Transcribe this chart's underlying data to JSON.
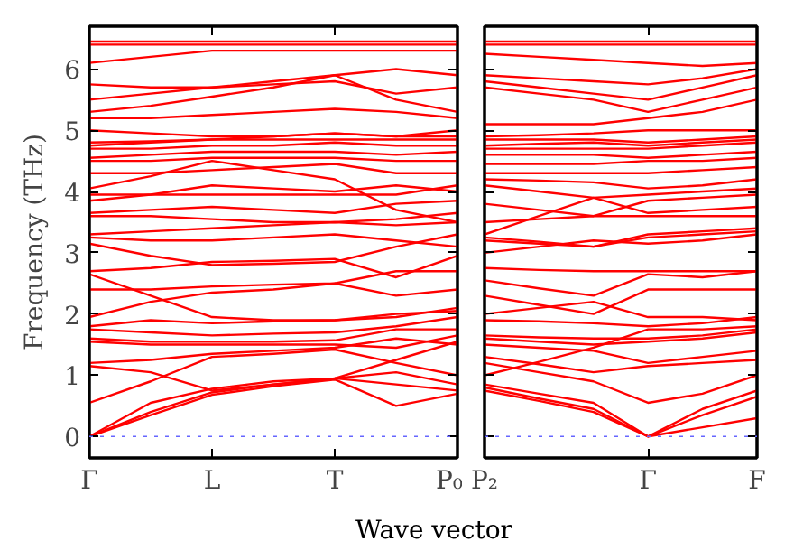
{
  "chart_data": [
    {
      "type": "line",
      "ylabel": "Frequency (THz)",
      "xlabel": "Wave vector",
      "categories": [
        "Γ",
        null,
        "L",
        null,
        "T",
        null,
        "P₀"
      ],
      "ylim": [
        -0.35,
        6.7
      ],
      "yticks": [
        0,
        1,
        2,
        3,
        4,
        5,
        6
      ],
      "grid": false,
      "line_style": "solid",
      "marker": "none",
      "ref_lines": [
        {
          "axis": "y",
          "value": 0,
          "color": "#6666ff",
          "line_style": "dotted"
        }
      ],
      "series": [
        {
          "color": "#ff0000",
          "values": [
            0,
            0.35,
            0.68,
            0.82,
            0.93,
            0.5,
            0.7
          ]
        },
        {
          "color": "#ff0000",
          "values": [
            0,
            0.4,
            0.72,
            0.85,
            0.95,
            0.85,
            0.75
          ]
        },
        {
          "color": "#ff0000",
          "values": [
            0,
            0.55,
            0.78,
            0.9,
            0.95,
            1.05,
            0.85
          ]
        },
        {
          "color": "#ff0000",
          "values": [
            0.55,
            0.9,
            1.3,
            1.35,
            1.42,
            1.2,
            1.0
          ]
        },
        {
          "color": "#ff0000",
          "values": [
            1.15,
            1.05,
            0.75,
            0.85,
            0.95,
            1.25,
            1.55
          ]
        },
        {
          "color": "#ff0000",
          "values": [
            1.2,
            1.25,
            1.35,
            1.4,
            1.45,
            1.6,
            1.5
          ]
        },
        {
          "color": "#ff0000",
          "values": [
            1.55,
            1.5,
            1.5,
            1.5,
            1.5,
            1.45,
            1.65
          ]
        },
        {
          "color": "#ff0000",
          "values": [
            1.6,
            1.55,
            1.55,
            1.55,
            1.57,
            1.75,
            1.75
          ]
        },
        {
          "color": "#ff0000",
          "values": [
            1.75,
            1.7,
            1.65,
            1.68,
            1.7,
            1.8,
            1.95
          ]
        },
        {
          "color": "#ff0000",
          "values": [
            1.8,
            1.9,
            1.85,
            1.88,
            1.9,
            1.95,
            2.1
          ]
        },
        {
          "color": "#ff0000",
          "values": [
            1.95,
            2.2,
            2.35,
            2.4,
            2.5,
            2.3,
            2.4
          ]
        },
        {
          "color": "#ff0000",
          "values": [
            2.4,
            2.4,
            2.45,
            2.48,
            2.5,
            2.7,
            2.7
          ]
        },
        {
          "color": "#ff0000",
          "values": [
            2.65,
            2.3,
            1.95,
            1.9,
            1.9,
            2.0,
            2.05
          ]
        },
        {
          "color": "#ff0000",
          "values": [
            2.7,
            2.75,
            2.85,
            2.87,
            2.9,
            2.6,
            2.95
          ]
        },
        {
          "color": "#ff0000",
          "values": [
            3.15,
            2.95,
            2.8,
            2.82,
            2.85,
            3.1,
            3.3
          ]
        },
        {
          "color": "#ff0000",
          "values": [
            3.25,
            3.2,
            3.2,
            3.25,
            3.3,
            3.2,
            3.1
          ]
        },
        {
          "color": "#ff0000",
          "values": [
            3.3,
            3.35,
            3.4,
            3.45,
            3.5,
            3.45,
            3.5
          ]
        },
        {
          "color": "#ff0000",
          "values": [
            3.6,
            3.6,
            3.55,
            3.5,
            3.5,
            3.55,
            3.65
          ]
        },
        {
          "color": "#ff0000",
          "values": [
            3.65,
            3.7,
            3.75,
            3.7,
            3.65,
            3.8,
            3.85
          ]
        },
        {
          "color": "#ff0000",
          "values": [
            3.85,
            3.95,
            4.1,
            4.05,
            4.0,
            4.1,
            4.0
          ]
        },
        {
          "color": "#ff0000",
          "values": [
            3.95,
            3.95,
            3.95,
            3.95,
            3.95,
            3.95,
            4.1
          ]
        },
        {
          "color": "#ff0000",
          "values": [
            4.05,
            4.25,
            4.5,
            4.35,
            4.2,
            3.7,
            3.5
          ]
        },
        {
          "color": "#ff0000",
          "values": [
            4.3,
            4.3,
            4.35,
            4.4,
            4.45,
            4.3,
            4.3
          ]
        },
        {
          "color": "#ff0000",
          "values": [
            4.5,
            4.5,
            4.55,
            4.55,
            4.55,
            4.5,
            4.5
          ]
        },
        {
          "color": "#ff0000",
          "values": [
            4.55,
            4.6,
            4.65,
            4.65,
            4.65,
            4.6,
            4.65
          ]
        },
        {
          "color": "#ff0000",
          "values": [
            4.7,
            4.7,
            4.75,
            4.75,
            4.8,
            4.75,
            4.75
          ]
        },
        {
          "color": "#ff0000",
          "values": [
            4.75,
            4.8,
            4.85,
            4.9,
            4.95,
            4.9,
            5.0
          ]
        },
        {
          "color": "#ff0000",
          "values": [
            4.8,
            4.82,
            4.85,
            4.85,
            4.85,
            4.85,
            4.85
          ]
        },
        {
          "color": "#ff0000",
          "values": [
            5.0,
            4.95,
            4.9,
            4.9,
            4.95,
            4.9,
            4.9
          ]
        },
        {
          "color": "#ff0000",
          "values": [
            5.2,
            5.2,
            5.25,
            5.3,
            5.35,
            5.3,
            5.2
          ]
        },
        {
          "color": "#ff0000",
          "values": [
            5.3,
            5.4,
            5.55,
            5.7,
            5.9,
            5.5,
            5.3
          ]
        },
        {
          "color": "#ff0000",
          "values": [
            5.5,
            5.6,
            5.7,
            5.8,
            5.9,
            6.0,
            5.9
          ]
        },
        {
          "color": "#ff0000",
          "values": [
            5.75,
            5.7,
            5.7,
            5.75,
            5.8,
            5.6,
            5.7
          ]
        },
        {
          "color": "#ff0000",
          "values": [
            6.1,
            6.2,
            6.3,
            6.3,
            6.3,
            6.3,
            6.3
          ]
        },
        {
          "color": "#ff0000",
          "values": [
            6.4,
            6.4,
            6.4,
            6.4,
            6.4,
            6.4,
            6.4
          ]
        },
        {
          "color": "#ff0000",
          "values": [
            6.45,
            6.45,
            6.45,
            6.45,
            6.45,
            6.45,
            6.45
          ]
        }
      ]
    },
    {
      "type": "line",
      "categories": [
        "P₂",
        null,
        null,
        "Γ",
        null,
        "F"
      ],
      "ylim": [
        -0.35,
        6.7
      ],
      "yticks": [
        0,
        1,
        2,
        3,
        4,
        5,
        6
      ],
      "tick_labels": "x",
      "grid": false,
      "line_style": "solid",
      "marker": "none",
      "ref_lines": [
        {
          "axis": "y",
          "value": 0,
          "color": "#6666ff",
          "line_style": "dotted"
        }
      ],
      "series": [
        {
          "color": "#ff0000",
          "values": [
            0.75,
            0.58,
            0.4,
            0,
            0.15,
            0.3
          ]
        },
        {
          "color": "#ff0000",
          "values": [
            0.8,
            0.62,
            0.45,
            0,
            0.35,
            0.65
          ]
        },
        {
          "color": "#ff0000",
          "values": [
            0.85,
            0.7,
            0.55,
            0,
            0.45,
            0.75
          ]
        },
        {
          "color": "#ff0000",
          "values": [
            1.2,
            1.05,
            0.9,
            0.55,
            0.7,
            1.0
          ]
        },
        {
          "color": "#ff0000",
          "values": [
            1.3,
            1.18,
            1.05,
            1.15,
            1.2,
            1.25
          ]
        },
        {
          "color": "#ff0000",
          "values": [
            1.5,
            1.45,
            1.4,
            1.2,
            1.3,
            1.4
          ]
        },
        {
          "color": "#ff0000",
          "values": [
            1.6,
            1.55,
            1.5,
            1.55,
            1.6,
            1.7
          ]
        },
        {
          "color": "#ff0000",
          "values": [
            1.65,
            1.62,
            1.6,
            1.6,
            1.65,
            1.75
          ]
        },
        {
          "color": "#ff0000",
          "values": [
            1.0,
            1.22,
            1.45,
            1.75,
            1.75,
            1.8
          ]
        },
        {
          "color": "#ff0000",
          "values": [
            1.9,
            1.88,
            1.85,
            1.8,
            1.85,
            1.95
          ]
        },
        {
          "color": "#ff0000",
          "values": [
            2.0,
            2.1,
            2.2,
            1.95,
            1.95,
            1.9
          ]
        },
        {
          "color": "#ff0000",
          "values": [
            2.3,
            2.15,
            2.0,
            2.4,
            2.4,
            2.4
          ]
        },
        {
          "color": "#ff0000",
          "values": [
            2.55,
            2.42,
            2.3,
            2.65,
            2.6,
            2.7
          ]
        },
        {
          "color": "#ff0000",
          "values": [
            2.75,
            2.72,
            2.7,
            2.7,
            2.7,
            2.7
          ]
        },
        {
          "color": "#ff0000",
          "values": [
            3.0,
            3.1,
            3.2,
            3.15,
            3.2,
            3.3
          ]
        },
        {
          "color": "#ff0000",
          "values": [
            3.25,
            3.18,
            3.1,
            3.25,
            3.3,
            3.35
          ]
        },
        {
          "color": "#ff0000",
          "values": [
            3.2,
            3.15,
            3.1,
            3.3,
            3.35,
            3.4
          ]
        },
        {
          "color": "#ff0000",
          "values": [
            3.5,
            3.55,
            3.6,
            3.6,
            3.6,
            3.6
          ]
        },
        {
          "color": "#ff0000",
          "values": [
            3.3,
            3.6,
            3.9,
            3.65,
            3.7,
            3.75
          ]
        },
        {
          "color": "#ff0000",
          "values": [
            3.8,
            3.7,
            3.6,
            3.85,
            3.9,
            3.95
          ]
        },
        {
          "color": "#ff0000",
          "values": [
            4.1,
            4.0,
            3.9,
            3.95,
            4.0,
            4.05
          ]
        },
        {
          "color": "#ff0000",
          "values": [
            4.2,
            4.18,
            4.15,
            4.05,
            4.1,
            4.2
          ]
        },
        {
          "color": "#ff0000",
          "values": [
            4.3,
            4.3,
            4.3,
            4.3,
            4.35,
            4.4
          ]
        },
        {
          "color": "#ff0000",
          "values": [
            4.45,
            4.45,
            4.45,
            4.5,
            4.5,
            4.55
          ]
        },
        {
          "color": "#ff0000",
          "values": [
            4.6,
            4.6,
            4.6,
            4.55,
            4.6,
            4.65
          ]
        },
        {
          "color": "#ff0000",
          "values": [
            4.7,
            4.7,
            4.7,
            4.7,
            4.75,
            4.8
          ]
        },
        {
          "color": "#ff0000",
          "values": [
            4.75,
            4.78,
            4.8,
            4.75,
            4.8,
            4.85
          ]
        },
        {
          "color": "#ff0000",
          "values": [
            4.85,
            4.85,
            4.85,
            4.8,
            4.85,
            4.9
          ]
        },
        {
          "color": "#ff0000",
          "values": [
            4.9,
            4.92,
            4.95,
            5.0,
            5.0,
            5.0
          ]
        },
        {
          "color": "#ff0000",
          "values": [
            5.1,
            5.1,
            5.1,
            5.2,
            5.3,
            5.5
          ]
        },
        {
          "color": "#ff0000",
          "values": [
            5.7,
            5.6,
            5.5,
            5.3,
            5.5,
            5.7
          ]
        },
        {
          "color": "#ff0000",
          "values": [
            5.8,
            5.7,
            5.6,
            5.5,
            5.7,
            5.9
          ]
        },
        {
          "color": "#ff0000",
          "values": [
            5.9,
            5.85,
            5.8,
            5.75,
            5.85,
            6.0
          ]
        },
        {
          "color": "#ff0000",
          "values": [
            6.25,
            6.2,
            6.15,
            6.1,
            6.05,
            6.1
          ]
        },
        {
          "color": "#ff0000",
          "values": [
            6.4,
            6.4,
            6.4,
            6.4,
            6.4,
            6.4
          ]
        },
        {
          "color": "#ff0000",
          "values": [
            6.45,
            6.45,
            6.45,
            6.45,
            6.45,
            6.45
          ]
        }
      ]
    }
  ]
}
